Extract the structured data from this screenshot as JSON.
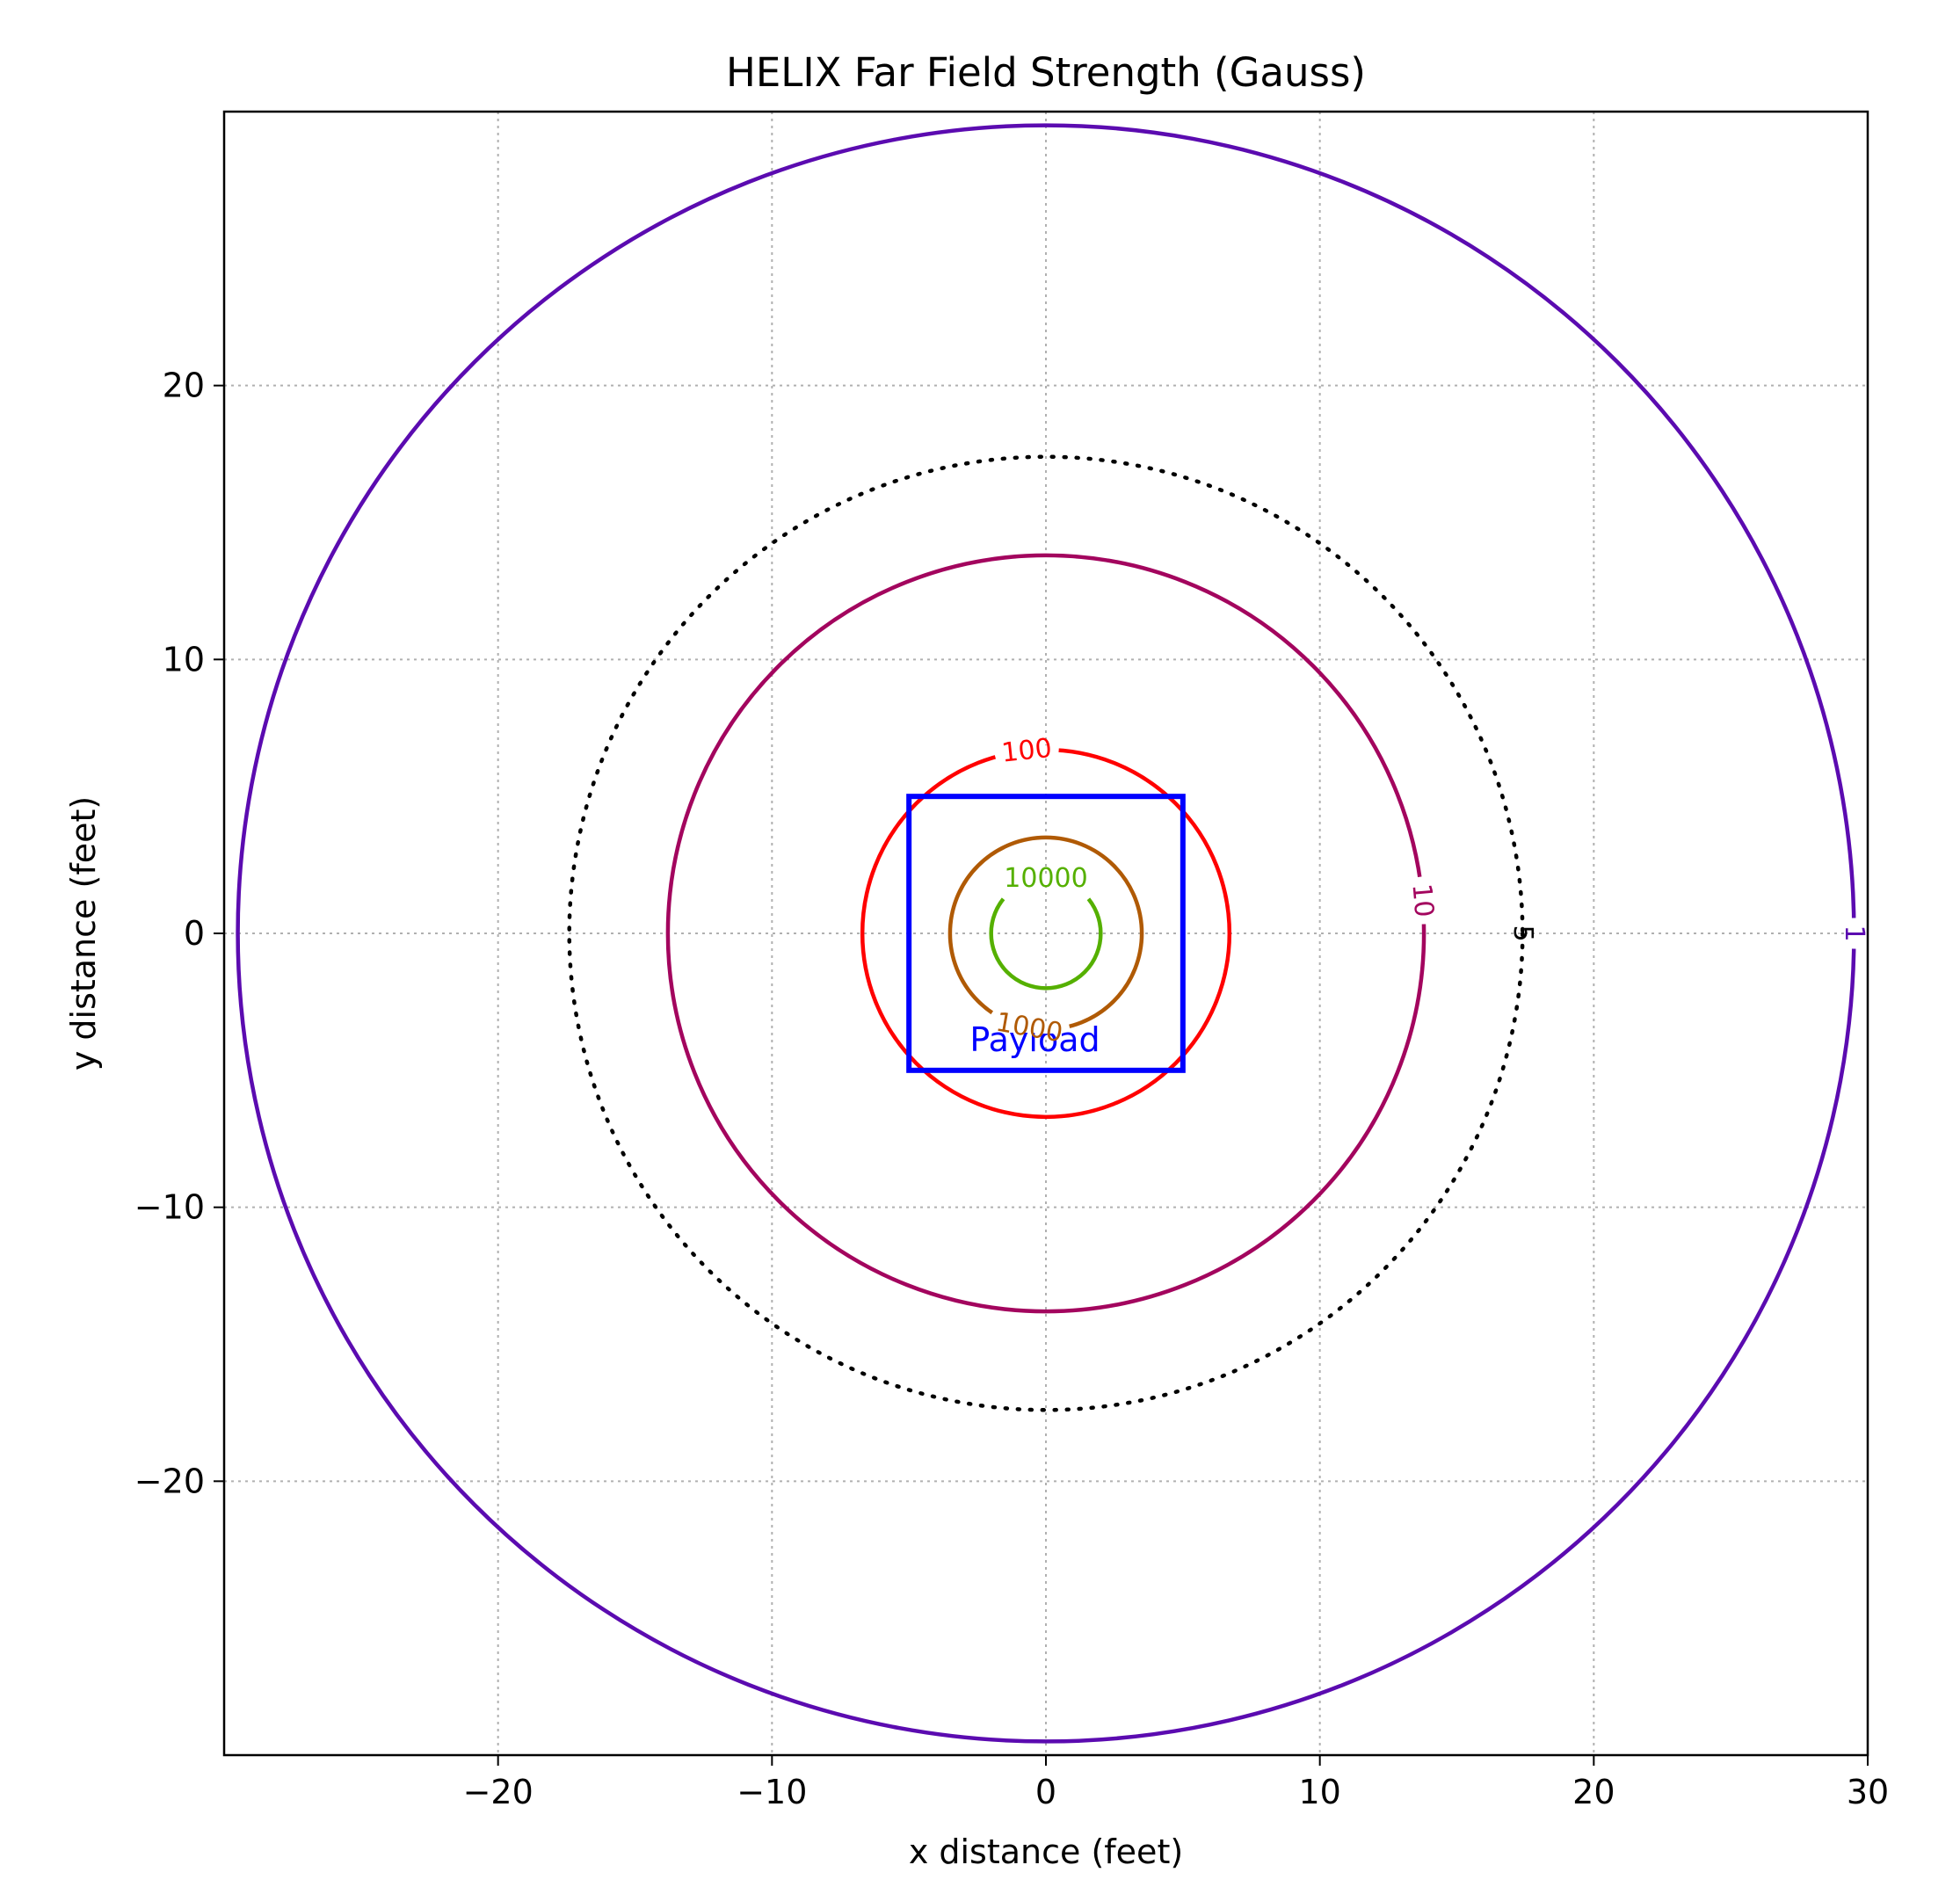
{
  "chart_data": {
    "type": "contour",
    "title": "HELIX Far Field Strength (Gauss)",
    "xlabel": "x distance (feet)",
    "ylabel": "y distance (feet)",
    "xlim": [
      -30,
      30
    ],
    "ylim": [
      -30,
      30
    ],
    "grid": true,
    "x_ticks": [
      -20,
      -10,
      0,
      10,
      20,
      30
    ],
    "x_tick_labels": [
      "−20",
      "−10",
      "0",
      "10",
      "20",
      "30"
    ],
    "y_ticks": [
      20,
      10,
      0,
      -10,
      -20
    ],
    "y_tick_labels": [
      "20",
      "10",
      "0",
      "−10",
      "−20"
    ],
    "contours": [
      {
        "level": "1",
        "radius": 29.5,
        "color": "#5b0bb0",
        "style": "solid",
        "label_angle_deg": 0
      },
      {
        "level": "10",
        "radius": 13.8,
        "color": "#a3055e",
        "style": "solid",
        "label_angle_deg": 5
      },
      {
        "level": "100",
        "radius": 6.7,
        "color": "#ff0000",
        "style": "solid",
        "label_angle_deg": 96
      },
      {
        "level": "1000",
        "radius": 3.5,
        "color": "#b05a05",
        "style": "solid",
        "label_angle_deg": 260
      },
      {
        "level": "10000",
        "radius": 2.0,
        "color": "#55b000",
        "style": "solid",
        "label_angle_deg": 90
      }
    ],
    "reference_contour": {
      "level": "5",
      "radius": 17.4,
      "color": "#000000",
      "style": "dotted"
    },
    "payload": {
      "label": "Payload",
      "x_range": [
        -5,
        5
      ],
      "y_range": [
        -5,
        5
      ],
      "color": "#0000ff"
    }
  }
}
